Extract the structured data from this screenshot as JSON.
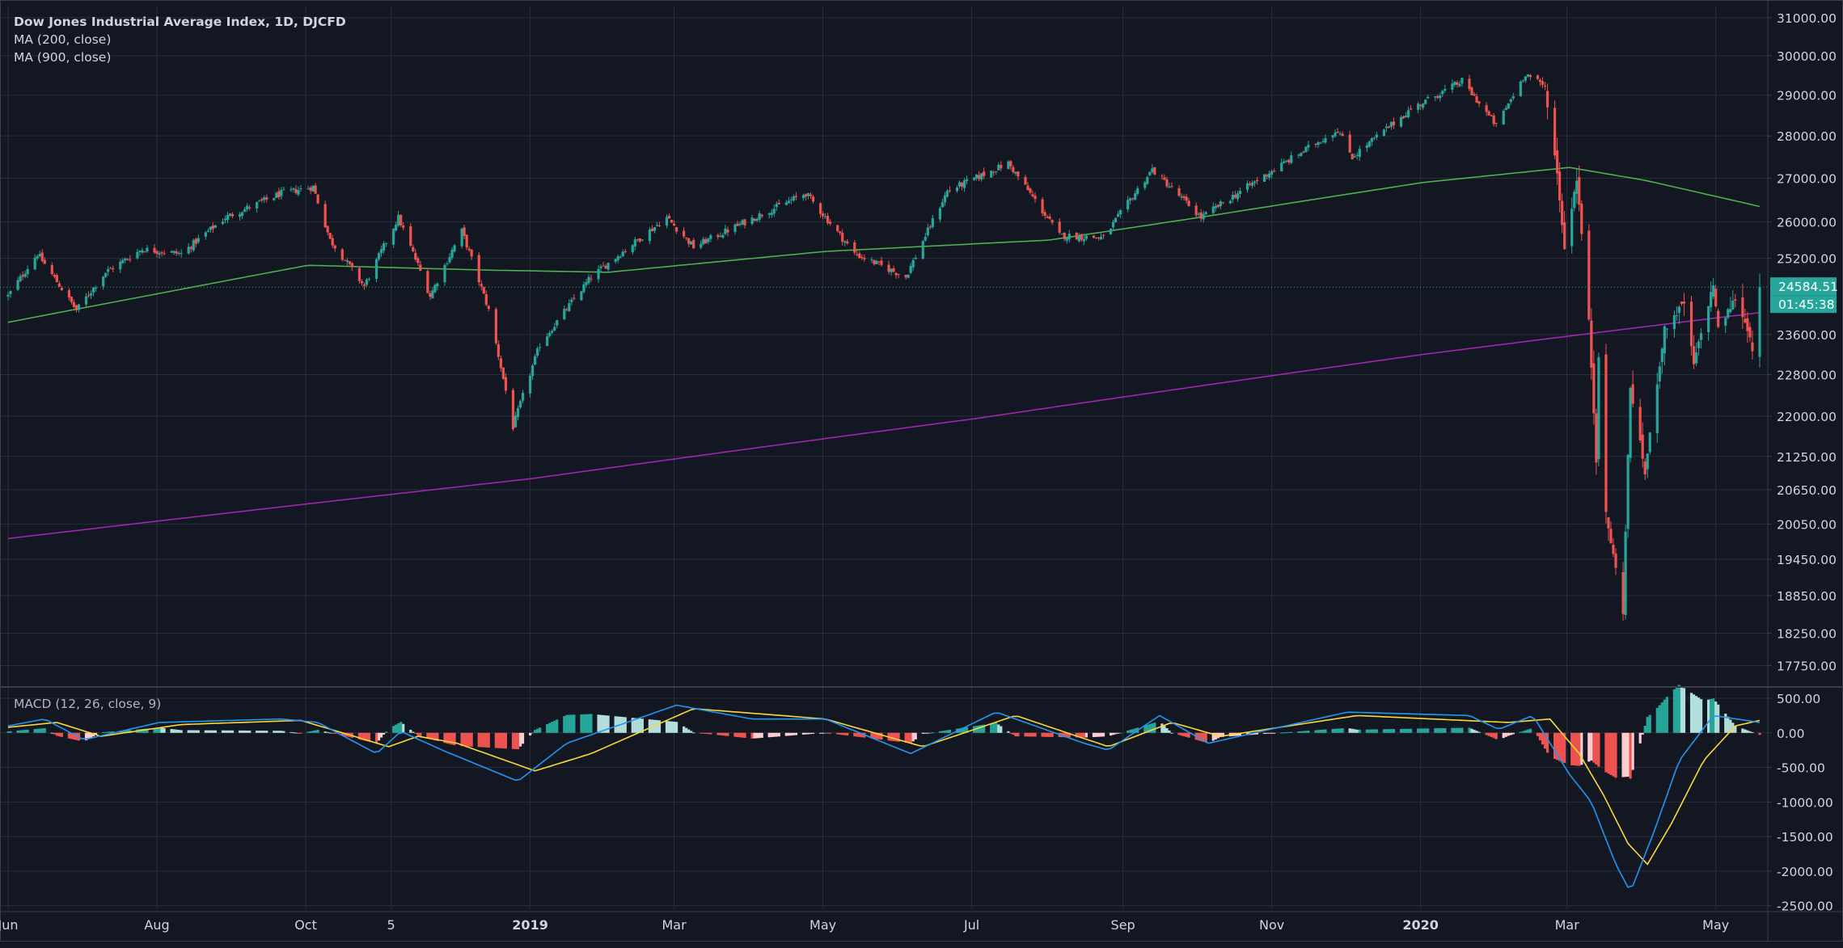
{
  "colors": {
    "background": "#131722",
    "grid": "#2a2e39",
    "border": "#3a3e4a",
    "text": "#d1d4dc",
    "up": "#26a69a",
    "down": "#ef5350",
    "ma200": "#4caf50",
    "ma900": "#9c27b0",
    "macd_line": "#2196f3",
    "signal_line": "#fdd835",
    "hist_up_strong": "#26a69a",
    "hist_up_weak": "#b2dfdb",
    "hist_down_strong": "#ef5350",
    "hist_down_weak": "#ffcdd2",
    "price_label_bg": "#26a69a"
  },
  "legend": {
    "title": "Dow Jones Industrial Average Index, 1D, DJCFD",
    "ma200": "MA (200, close)",
    "ma900": "MA (900, close)",
    "macd": "MACD (12, 26, close, 9)"
  },
  "price_labels": {
    "last_price": "24584.51",
    "countdown": "01:45:38"
  },
  "chart_data": [
    {
      "type": "candlestick",
      "title": "Dow Jones Industrial Average Index, 1D, DJCFD",
      "x_ticks": [
        {
          "label": "Jun",
          "d": 0
        },
        {
          "label": "Aug",
          "d": 61
        },
        {
          "label": "Oct",
          "d": 122
        },
        {
          "label": "5",
          "d": 157
        },
        {
          "label": "2019",
          "d": 214,
          "bold": true
        },
        {
          "label": "Mar",
          "d": 273
        },
        {
          "label": "May",
          "d": 334
        },
        {
          "label": "Jul",
          "d": 395
        },
        {
          "label": "Sep",
          "d": 457
        },
        {
          "label": "Nov",
          "d": 518
        },
        {
          "label": "2020",
          "d": 579,
          "bold": true
        },
        {
          "label": "Mar",
          "d": 639
        },
        {
          "label": "May",
          "d": 700
        }
      ],
      "y_scale": "log",
      "y_range": [
        17450,
        31300
      ],
      "y_ticks": [
        "31000.00",
        "30000.00",
        "29000.00",
        "28000.00",
        "27000.00",
        "26000.00",
        "25200.00",
        "23600.00",
        "22800.00",
        "22000.00",
        "21250.00",
        "20650.00",
        "20050.00",
        "19450.00",
        "18850.00",
        "18250.00",
        "17750.00"
      ],
      "last_price": 24584.51,
      "close_keypoints": [
        {
          "date": "2018-05-31",
          "close": 24400
        },
        {
          "date": "2018-06-12",
          "close": 25300
        },
        {
          "date": "2018-06-28",
          "close": 24100
        },
        {
          "date": "2018-07-10",
          "close": 24900
        },
        {
          "date": "2018-07-25",
          "close": 25400
        },
        {
          "date": "2018-08-10",
          "close": 25300
        },
        {
          "date": "2018-08-28",
          "close": 26100
        },
        {
          "date": "2018-09-20",
          "close": 26650
        },
        {
          "date": "2018-10-03",
          "close": 26800
        },
        {
          "date": "2018-10-10",
          "close": 25600
        },
        {
          "date": "2018-10-24",
          "close": 24600
        },
        {
          "date": "2018-11-07",
          "close": 26100
        },
        {
          "date": "2018-11-20",
          "close": 24400
        },
        {
          "date": "2018-12-03",
          "close": 25800
        },
        {
          "date": "2018-12-14",
          "close": 24100
        },
        {
          "date": "2018-12-24",
          "close": 21800
        },
        {
          "date": "2019-01-04",
          "close": 23400
        },
        {
          "date": "2019-01-25",
          "close": 24800
        },
        {
          "date": "2019-02-25",
          "close": 26100
        },
        {
          "date": "2019-03-08",
          "close": 25450
        },
        {
          "date": "2019-04-23",
          "close": 26650
        },
        {
          "date": "2019-05-13",
          "close": 25300
        },
        {
          "date": "2019-06-03",
          "close": 24800
        },
        {
          "date": "2019-06-20",
          "close": 26700
        },
        {
          "date": "2019-07-15",
          "close": 27350
        },
        {
          "date": "2019-08-05",
          "close": 25700
        },
        {
          "date": "2019-08-23",
          "close": 25650
        },
        {
          "date": "2019-09-12",
          "close": 27200
        },
        {
          "date": "2019-10-02",
          "close": 26100
        },
        {
          "date": "2019-10-25",
          "close": 26950
        },
        {
          "date": "2019-11-27",
          "close": 28150
        },
        {
          "date": "2019-12-03",
          "close": 27500
        },
        {
          "date": "2019-12-27",
          "close": 28650
        },
        {
          "date": "2020-01-17",
          "close": 29350
        },
        {
          "date": "2020-01-31",
          "close": 28250
        },
        {
          "date": "2020-02-12",
          "close": 29550
        },
        {
          "date": "2020-02-20",
          "close": 29200
        },
        {
          "date": "2020-02-25",
          "close": 27100
        },
        {
          "date": "2020-02-28",
          "close": 25400
        },
        {
          "date": "2020-03-04",
          "close": 27000
        },
        {
          "date": "2020-03-09",
          "close": 23850
        },
        {
          "date": "2020-03-12",
          "close": 21200
        },
        {
          "date": "2020-03-13",
          "close": 23200
        },
        {
          "date": "2020-03-16",
          "close": 20200
        },
        {
          "date": "2020-03-23",
          "close": 18600
        },
        {
          "date": "2020-03-26",
          "close": 22550
        },
        {
          "date": "2020-04-01",
          "close": 20950
        },
        {
          "date": "2020-04-09",
          "close": 23700
        },
        {
          "date": "2020-04-17",
          "close": 24250
        },
        {
          "date": "2020-04-21",
          "close": 23000
        },
        {
          "date": "2020-04-29",
          "close": 24650
        },
        {
          "date": "2020-05-01",
          "close": 23700
        },
        {
          "date": "2020-05-08",
          "close": 24350
        },
        {
          "date": "2020-05-14",
          "close": 23600
        },
        {
          "date": "2020-05-15",
          "close": 23200
        },
        {
          "date": "2020-05-18",
          "close": 24584.51
        }
      ],
      "series": [
        {
          "name": "MA (200, close)",
          "points": [
            {
              "date": "2018-05-31",
              "value": 23850
            },
            {
              "date": "2018-08-01",
              "value": 24450
            },
            {
              "date": "2018-10-01",
              "value": 25050
            },
            {
              "date": "2018-12-10",
              "value": 24950
            },
            {
              "date": "2019-02-01",
              "value": 24900
            },
            {
              "date": "2019-05-01",
              "value": 25350
            },
            {
              "date": "2019-08-01",
              "value": 25600
            },
            {
              "date": "2019-10-01",
              "value": 26100
            },
            {
              "date": "2020-01-01",
              "value": 26900
            },
            {
              "date": "2020-03-01",
              "value": 27250
            },
            {
              "date": "2020-04-01",
              "value": 26950
            },
            {
              "date": "2020-05-18",
              "value": 26350
            }
          ]
        },
        {
          "name": "MA (900, close)",
          "points": [
            {
              "date": "2018-05-31",
              "value": 19800
            },
            {
              "date": "2019-01-01",
              "value": 20850
            },
            {
              "date": "2019-07-01",
              "value": 21950
            },
            {
              "date": "2020-01-01",
              "value": 23200
            },
            {
              "date": "2020-05-18",
              "value": 24050
            }
          ]
        }
      ]
    },
    {
      "type": "macd",
      "title": "MACD (12, 26, close, 9)",
      "y_range": [
        -2550,
        640
      ],
      "y_ticks": [
        "500.00",
        "0.00",
        "-500.00",
        "-1000.00",
        "-1500.00",
        "-2000.00",
        "-2500.00"
      ],
      "series": [
        {
          "name": "MACD",
          "points": [
            {
              "date": "2018-05-31",
              "value": 100
            },
            {
              "date": "2018-06-15",
              "value": 200
            },
            {
              "date": "2018-07-01",
              "value": -100
            },
            {
              "date": "2018-08-01",
              "value": 150
            },
            {
              "date": "2018-09-20",
              "value": 200
            },
            {
              "date": "2018-10-05",
              "value": 150
            },
            {
              "date": "2018-10-29",
              "value": -300
            },
            {
              "date": "2018-11-08",
              "value": 20
            },
            {
              "date": "2018-11-25",
              "value": -250
            },
            {
              "date": "2018-12-26",
              "value": -700
            },
            {
              "date": "2019-01-15",
              "value": -150
            },
            {
              "date": "2019-03-01",
              "value": 400
            },
            {
              "date": "2019-04-01",
              "value": 200
            },
            {
              "date": "2019-05-01",
              "value": 200
            },
            {
              "date": "2019-06-05",
              "value": -300
            },
            {
              "date": "2019-07-10",
              "value": 300
            },
            {
              "date": "2019-08-15",
              "value": -150
            },
            {
              "date": "2019-08-25",
              "value": -250
            },
            {
              "date": "2019-09-15",
              "value": 250
            },
            {
              "date": "2019-10-05",
              "value": -150
            },
            {
              "date": "2019-12-01",
              "value": 300
            },
            {
              "date": "2020-01-20",
              "value": 250
            },
            {
              "date": "2020-02-01",
              "value": 50
            },
            {
              "date": "2020-02-15",
              "value": 250
            },
            {
              "date": "2020-03-01",
              "value": -600
            },
            {
              "date": "2020-03-10",
              "value": -1000
            },
            {
              "date": "2020-03-20",
              "value": -1900
            },
            {
              "date": "2020-03-26",
              "value": -2300
            },
            {
              "date": "2020-04-05",
              "value": -1400
            },
            {
              "date": "2020-04-15",
              "value": -400
            },
            {
              "date": "2020-04-29",
              "value": 250
            },
            {
              "date": "2020-05-18",
              "value": 150
            }
          ]
        },
        {
          "name": "Signal",
          "points": [
            {
              "date": "2018-05-31",
              "value": 80
            },
            {
              "date": "2018-06-20",
              "value": 150
            },
            {
              "date": "2018-07-08",
              "value": -50
            },
            {
              "date": "2018-08-10",
              "value": 120
            },
            {
              "date": "2018-09-28",
              "value": 180
            },
            {
              "date": "2018-11-03",
              "value": -200
            },
            {
              "date": "2018-11-15",
              "value": -50
            },
            {
              "date": "2018-12-01",
              "value": -150
            },
            {
              "date": "2019-01-02",
              "value": -550
            },
            {
              "date": "2019-01-25",
              "value": -300
            },
            {
              "date": "2019-03-08",
              "value": 350
            },
            {
              "date": "2019-05-01",
              "value": 200
            },
            {
              "date": "2019-06-10",
              "value": -200
            },
            {
              "date": "2019-07-18",
              "value": 250
            },
            {
              "date": "2019-08-25",
              "value": -200
            },
            {
              "date": "2019-09-20",
              "value": 150
            },
            {
              "date": "2019-10-10",
              "value": -50
            },
            {
              "date": "2019-12-05",
              "value": 250
            },
            {
              "date": "2020-02-05",
              "value": 150
            },
            {
              "date": "2020-02-22",
              "value": 200
            },
            {
              "date": "2020-03-05",
              "value": -300
            },
            {
              "date": "2020-03-15",
              "value": -900
            },
            {
              "date": "2020-03-25",
              "value": -1600
            },
            {
              "date": "2020-04-02",
              "value": -1900
            },
            {
              "date": "2020-04-12",
              "value": -1300
            },
            {
              "date": "2020-04-25",
              "value": -400
            },
            {
              "date": "2020-05-08",
              "value": 100
            },
            {
              "date": "2020-05-18",
              "value": 180
            }
          ]
        }
      ],
      "histogram": "MACD minus Signal"
    }
  ]
}
